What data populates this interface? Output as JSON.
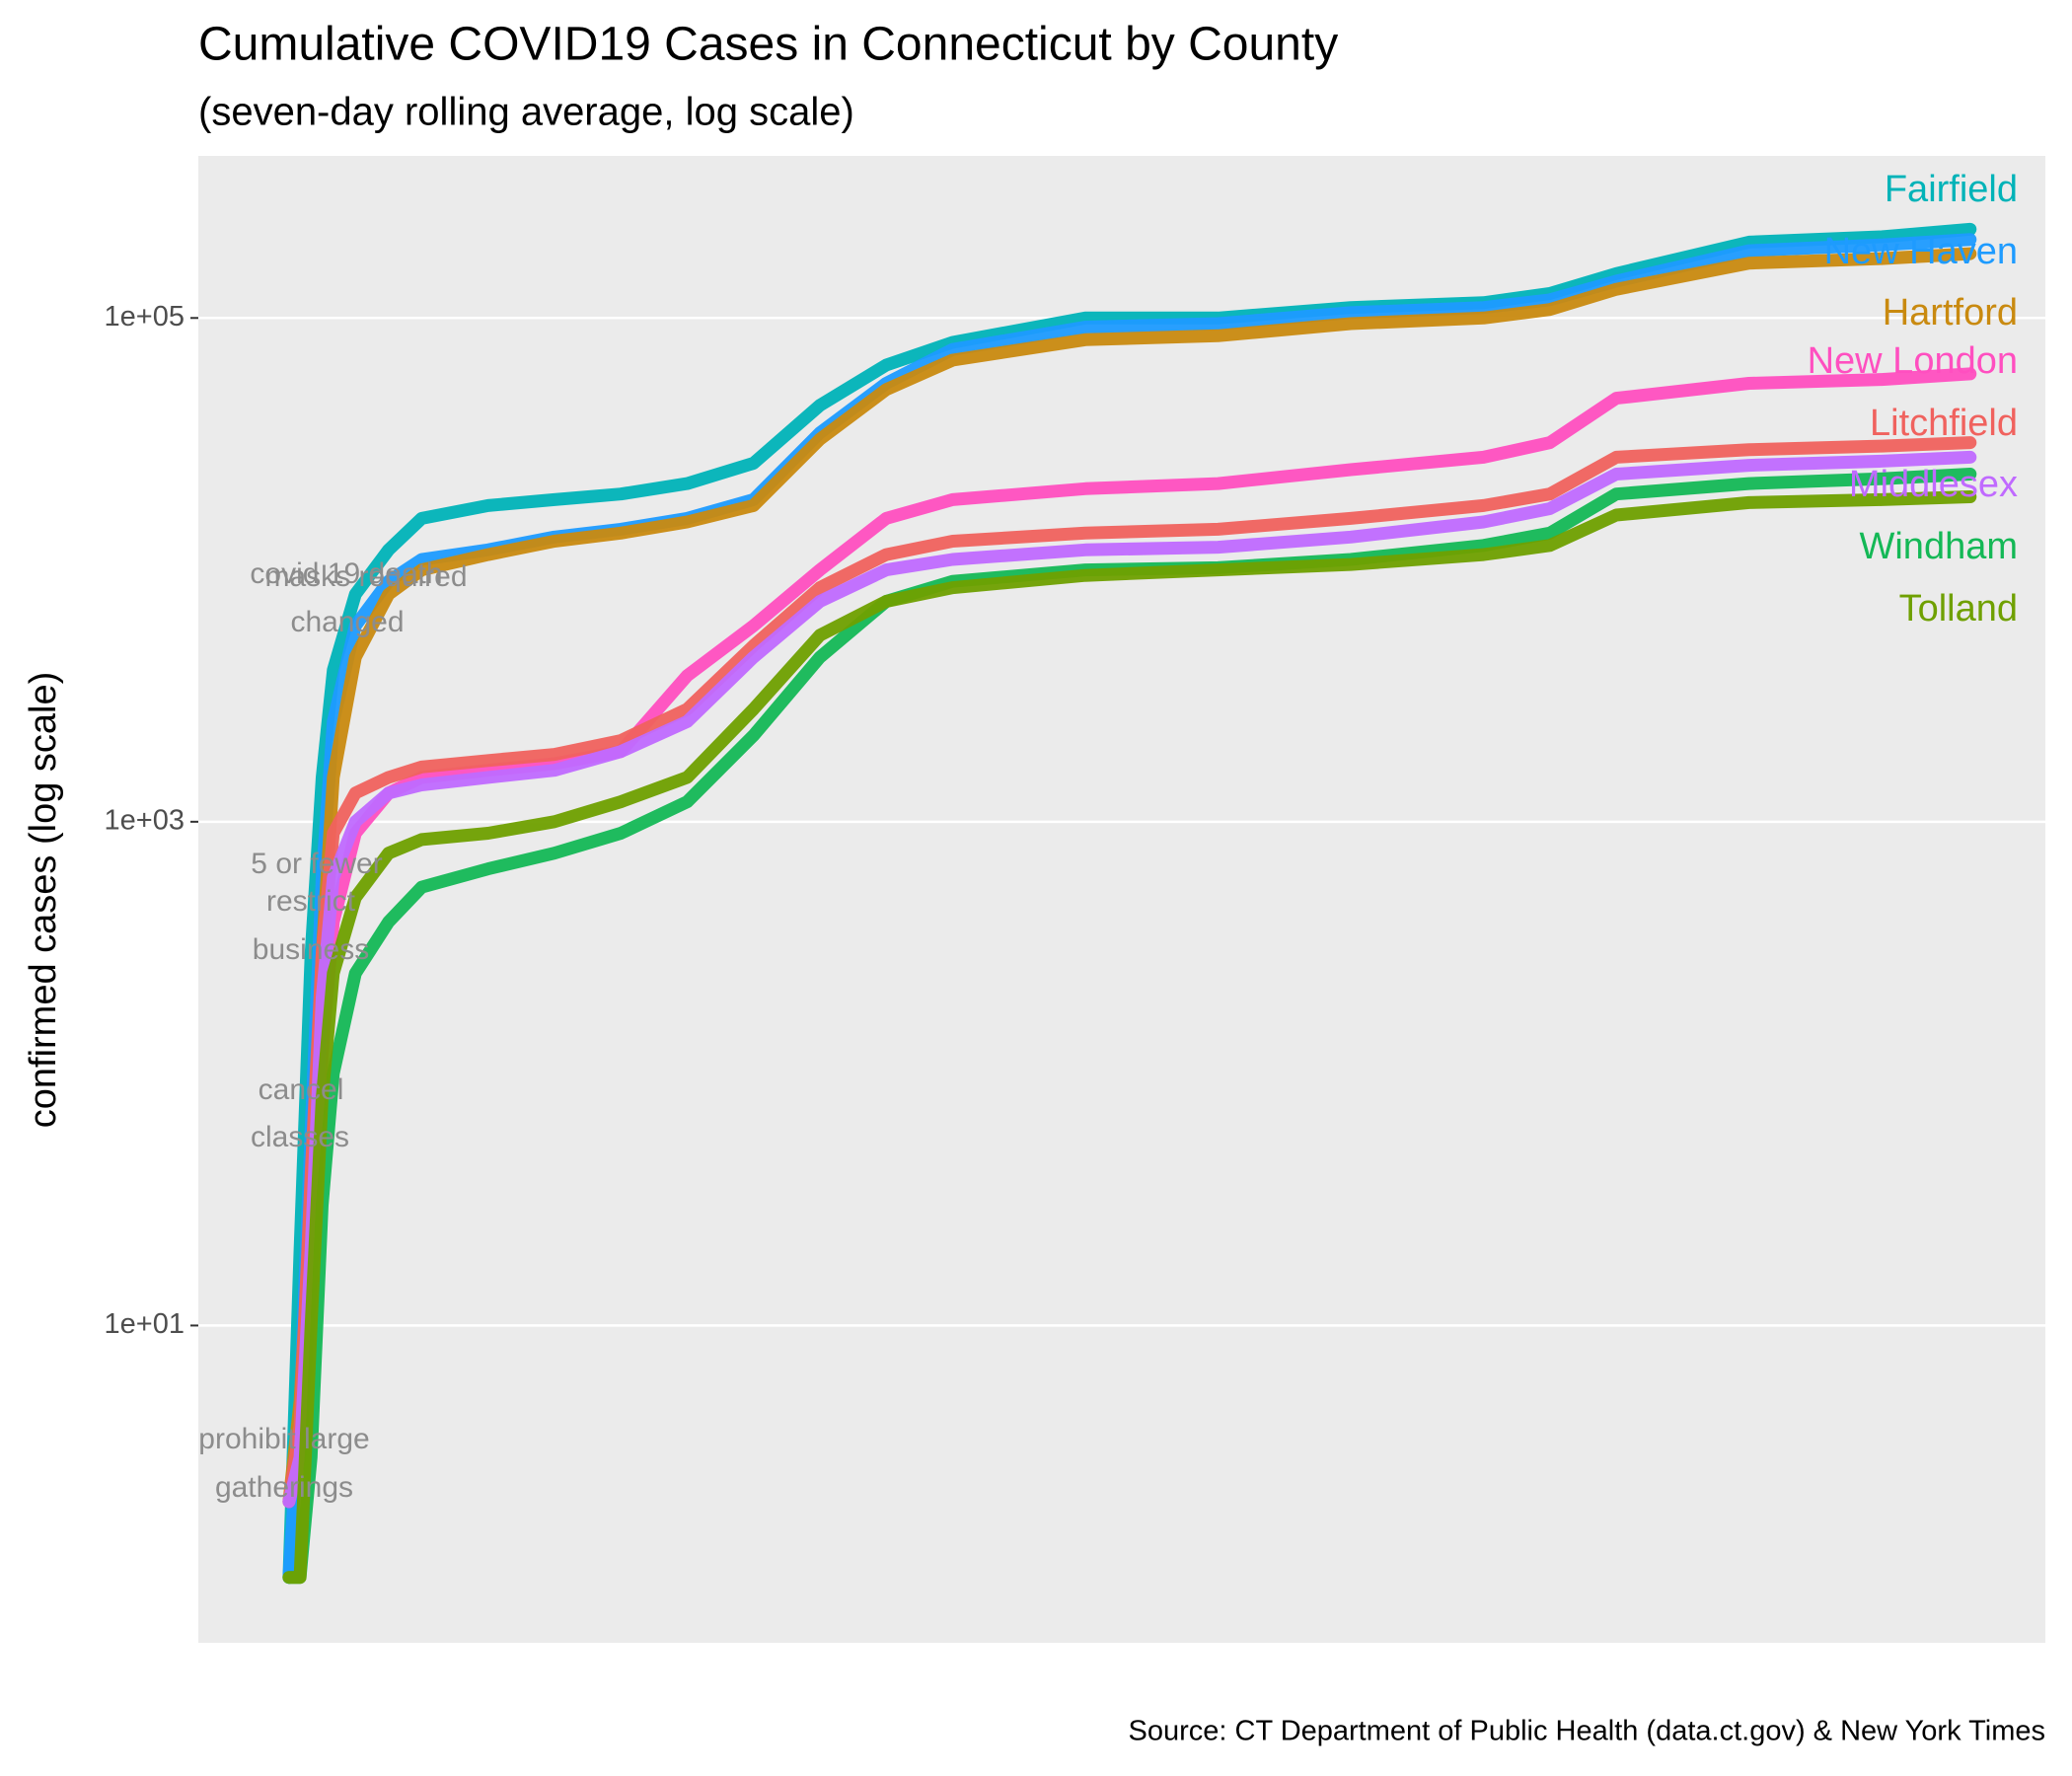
{
  "chart_data": {
    "type": "line",
    "title": "Cumulative COVID19 Cases in Connecticut by County",
    "subtitle": "(seven-day rolling average, log scale)",
    "y_label": "confirmed cases (log scale)",
    "source": "Source: CT Department of Public Health (data.ct.gov) & New York Times",
    "log_scale": true,
    "grid": true,
    "ylim": [
      0.55,
      440000
    ],
    "yticks": [
      {
        "value": 10,
        "label": "1e+01"
      },
      {
        "value": 1000,
        "label": "1e+03"
      },
      {
        "value": 100000,
        "label": "1e+05"
      }
    ],
    "xlim": [
      -41,
      794
    ],
    "x": [
      0,
      5,
      10,
      15,
      20,
      30,
      45,
      60,
      90,
      120,
      150,
      180,
      210,
      240,
      270,
      300,
      360,
      420,
      480,
      540,
      570,
      600,
      660,
      720,
      760
    ],
    "annotations": [
      "covid 19 death",
      "masks required",
      "changed",
      "5 or fewer",
      "restrict",
      "business",
      "cancel",
      "classes",
      "prohibit large",
      "gatherings"
    ],
    "series": [
      {
        "name": "Fairfield",
        "color": "#00B3B8",
        "values": [
          1,
          20,
          300,
          1500,
          4000,
          8000,
          12000,
          16000,
          18000,
          19000,
          20000,
          22000,
          26500,
          45000,
          65000,
          80000,
          100000,
          100000,
          110000,
          115000,
          125000,
          150000,
          200000,
          210000,
          225000
        ]
      },
      {
        "name": "New Haven",
        "color": "#1E9BFF",
        "values": [
          1,
          5,
          60,
          600,
          2500,
          6000,
          9000,
          11000,
          12000,
          13500,
          14500,
          16000,
          19000,
          35000,
          55000,
          75000,
          92000,
          95000,
          105000,
          110000,
          118000,
          140000,
          185000,
          195000,
          205000
        ]
      },
      {
        "name": "Hartford",
        "color": "#C98A10",
        "values": [
          2,
          5,
          30,
          300,
          1500,
          4500,
          8000,
          10000,
          11500,
          13000,
          14000,
          15500,
          18000,
          33000,
          52000,
          68000,
          82000,
          85000,
          95000,
          100000,
          108000,
          130000,
          165000,
          172000,
          180000
        ]
      },
      {
        "name": "New London",
        "color": "#FF4FC0",
        "values": [
          2,
          3,
          15,
          120,
          400,
          900,
          1300,
          1500,
          1600,
          1700,
          1900,
          3800,
          6000,
          10000,
          16000,
          19000,
          21000,
          22000,
          25000,
          28000,
          32000,
          48000,
          55000,
          57000,
          60000
        ]
      },
      {
        "name": "Litchfield",
        "color": "#F0625E",
        "values": [
          2,
          4,
          40,
          300,
          900,
          1300,
          1500,
          1650,
          1750,
          1850,
          2100,
          2800,
          5000,
          8500,
          11500,
          13000,
          14000,
          14500,
          16000,
          18000,
          20000,
          28000,
          30000,
          31000,
          32000
        ]
      },
      {
        "name": "Middlesex",
        "color": "#C06AFF",
        "values": [
          2,
          3,
          20,
          200,
          600,
          1000,
          1300,
          1400,
          1500,
          1600,
          1900,
          2500,
          4500,
          7500,
          10000,
          11000,
          12000,
          12300,
          13500,
          15500,
          17500,
          24000,
          26000,
          27000,
          28000
        ]
      },
      {
        "name": "Windham",
        "color": "#14B856",
        "values": [
          1,
          1,
          3,
          30,
          100,
          250,
          400,
          550,
          650,
          750,
          900,
          1200,
          2200,
          4500,
          7500,
          9000,
          10000,
          10200,
          11000,
          12500,
          14000,
          20000,
          22000,
          23000,
          24000
        ]
      },
      {
        "name": "Tolland",
        "color": "#6FA000",
        "values": [
          1,
          1,
          10,
          80,
          250,
          500,
          750,
          850,
          900,
          1000,
          1200,
          1500,
          2800,
          5500,
          7500,
          8500,
          9500,
          10000,
          10500,
          11500,
          12500,
          16500,
          18500,
          19000,
          19500
        ]
      }
    ]
  }
}
